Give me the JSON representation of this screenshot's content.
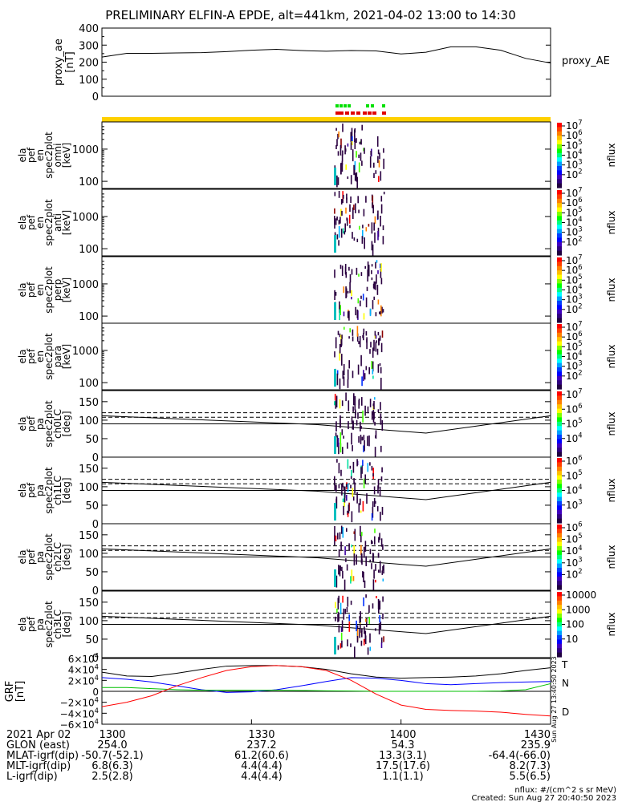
{
  "title": "PRELIMINARY ELFIN-A EPDE, alt=441km, 2021-04-02 13:00 to 14:30",
  "colors": {
    "yellow_bar": "#ffd000",
    "marker_green": "#00e000",
    "marker_red": "#e00000",
    "grf_T": "#000000",
    "grf_N": "#0000ff",
    "grf_E": "#00c000",
    "grf_D": "#ff0000"
  },
  "chart_data": [
    {
      "type": "line",
      "panel": "proxy_ae",
      "ylabel_lines": [
        "proxy_ae",
        "[nT]"
      ],
      "ylim": [
        0,
        400
      ],
      "yticks": [
        "400",
        "300",
        "200",
        "100",
        "0"
      ],
      "series": [
        {
          "name": "proxy_AE",
          "x": [
            0,
            5,
            10,
            15,
            20,
            25,
            30,
            35,
            40,
            45,
            50,
            55,
            60,
            65,
            70,
            75,
            80,
            85,
            90
          ],
          "values": [
            230,
            252,
            252,
            254,
            256,
            262,
            270,
            275,
            268,
            264,
            268,
            266,
            248,
            258,
            290,
            290,
            270,
            222,
            195
          ]
        }
      ]
    },
    {
      "type": "heatmap",
      "panel": "ela_pef_en_spec2plot_omni",
      "ylabel_lines": [
        "ela",
        "pef",
        "en",
        "spec2plot",
        "omni",
        "[keV]"
      ],
      "scale": "log",
      "ylim": [
        60,
        7000
      ],
      "yticks": [
        "1000",
        "100"
      ],
      "colorbar": {
        "label": "nflux",
        "ticks": [
          "10^7",
          "10^6",
          "10^5",
          "10^4",
          "10^3",
          "10^2"
        ]
      }
    },
    {
      "type": "heatmap",
      "panel": "ela_pef_en_spec2plot_anti",
      "ylabel_lines": [
        "ela",
        "pef",
        "en",
        "spec2plot",
        "anti",
        "[keV]"
      ],
      "scale": "log",
      "ylim": [
        60,
        7000
      ],
      "yticks": [
        "1000",
        "100"
      ],
      "colorbar": {
        "label": "nflux",
        "ticks": [
          "10^7",
          "10^6",
          "10^5",
          "10^4",
          "10^3",
          "10^2"
        ]
      }
    },
    {
      "type": "heatmap",
      "panel": "ela_pef_en_spec2plot_perp",
      "ylabel_lines": [
        "ela",
        "pef",
        "en",
        "spec2plot",
        "perp",
        "[keV]"
      ],
      "scale": "log",
      "ylim": [
        60,
        7000
      ],
      "yticks": [
        "1000",
        "100"
      ],
      "colorbar": {
        "label": "nflux",
        "ticks": [
          "10^7",
          "10^6",
          "10^5",
          "10^4",
          "10^3",
          "10^2"
        ]
      }
    },
    {
      "type": "heatmap",
      "panel": "ela_pef_en_spec2plot_para",
      "ylabel_lines": [
        "ela",
        "pef",
        "en",
        "spec2plot",
        "para",
        "[keV]"
      ],
      "scale": "log",
      "ylim": [
        60,
        7000
      ],
      "yticks": [
        "1000",
        "100"
      ],
      "colorbar": {
        "label": "nflux",
        "ticks": [
          "10^7",
          "10^6",
          "10^5",
          "10^4",
          "10^3",
          "10^2"
        ]
      }
    },
    {
      "type": "heatmap",
      "panel": "ela_pef_pa_spec2plot_ch0LC",
      "ylabel_lines": [
        "ela",
        "pef",
        "pa",
        "spec2plot",
        "ch0LC",
        "[deg]"
      ],
      "ylim": [
        0,
        180
      ],
      "yticks": [
        "150",
        "100",
        "50",
        "0"
      ],
      "colorbar": {
        "label": "nflux",
        "ticks": [
          "10^7",
          "10^6",
          "10^5",
          "10^4"
        ]
      }
    },
    {
      "type": "heatmap",
      "panel": "ela_pef_pa_spec2plot_ch1LC",
      "ylabel_lines": [
        "ela",
        "pef",
        "pa",
        "spec2plot",
        "ch1LC",
        "[deg]"
      ],
      "ylim": [
        0,
        180
      ],
      "yticks": [
        "150",
        "100",
        "50",
        "0"
      ],
      "colorbar": {
        "label": "nflux",
        "ticks": [
          "10^6",
          "10^5",
          "10^4",
          "10^3"
        ]
      }
    },
    {
      "type": "heatmap",
      "panel": "ela_pef_pa_spec2plot_ch2LC",
      "ylabel_lines": [
        "ela",
        "pef",
        "pa",
        "spec2plot",
        "ch2LC",
        "[deg]"
      ],
      "ylim": [
        0,
        180
      ],
      "yticks": [
        "150",
        "100",
        "50",
        "0"
      ],
      "colorbar": {
        "label": "nflux",
        "ticks": [
          "10^6",
          "10^5",
          "10^4",
          "10^3",
          "10^2"
        ]
      }
    },
    {
      "type": "heatmap",
      "panel": "ela_pef_pa_spec2plot_ch3LC",
      "ylabel_lines": [
        "ela",
        "pef",
        "pa",
        "spec2plot",
        "ch3LC",
        "[deg]"
      ],
      "ylim": [
        0,
        180
      ],
      "yticks": [
        "150",
        "100",
        "50",
        "0"
      ],
      "colorbar": {
        "label": "nflux",
        "ticks": [
          "10000",
          "1000",
          "100",
          "10"
        ]
      }
    },
    {
      "type": "line",
      "panel": "GRF",
      "ylabel_lines": [
        "GRF",
        "[nT]"
      ],
      "ylim": [
        -60000,
        60000
      ],
      "yticks": [
        "6×10^4",
        "4×10^4",
        "2×10^4",
        "0",
        "−2×10^4",
        "−4×10^4",
        "−6×10^4"
      ],
      "x": [
        0,
        5,
        10,
        15,
        20,
        25,
        30,
        35,
        40,
        45,
        50,
        55,
        60,
        65,
        70,
        75,
        80,
        85,
        90
      ],
      "series": [
        {
          "name": "T",
          "values": [
            35000,
            28000,
            27000,
            33000,
            40000,
            46000,
            47000,
            47000,
            45000,
            40000,
            32000,
            26000,
            24000,
            25000,
            26000,
            28000,
            32000,
            38000,
            43000
          ]
        },
        {
          "name": "N",
          "values": [
            25000,
            22000,
            17000,
            10000,
            3000,
            -2000,
            -1000,
            3000,
            10000,
            18000,
            25000,
            24000,
            20000,
            14000,
            12000,
            14000,
            16000,
            17000,
            18000
          ]
        },
        {
          "name": "E",
          "values": [
            7000,
            7000,
            5000,
            3000,
            2000,
            2000,
            2000,
            2000,
            1500,
            1000,
            500,
            0,
            0,
            0,
            0,
            0,
            500,
            3000,
            14000
          ]
        },
        {
          "name": "D",
          "values": [
            -28000,
            -20000,
            -8000,
            10000,
            25000,
            38000,
            45000,
            47000,
            45000,
            38000,
            20000,
            -5000,
            -25000,
            -33000,
            -35000,
            -36000,
            -38000,
            -42000,
            -45000
          ]
        }
      ]
    }
  ],
  "time_axis": {
    "ticks": [
      "1300",
      "1330",
      "1400",
      "1430"
    ],
    "rows": [
      {
        "label": "2021 Apr 02",
        "values": [
          "1300",
          "1330",
          "1400",
          "1430"
        ]
      },
      {
        "label": "GLON (east)",
        "values": [
          "254.0",
          "237.2",
          "54.3",
          "235.9"
        ]
      },
      {
        "label": "MLAT-igrf(dip)",
        "values": [
          "-50.7(-52.1)",
          "61.2(60.6)",
          "13.3(3.1)",
          "-64.4(-66.0)"
        ]
      },
      {
        "label": "MLT-igrf(dip)",
        "values": [
          "6.8(6.3)",
          "4.4(4.4)",
          "17.5(17.6)",
          "8.2(7.3)"
        ]
      },
      {
        "label": "L-igrf(dip)",
        "values": [
          "2.5(2.8)",
          "4.4(4.4)",
          "1.1(1.1)",
          "5.5(6.5)"
        ]
      }
    ]
  },
  "legend": {
    "proxy": "proxy_AE",
    "grf": [
      "T",
      "N",
      "E",
      "D"
    ]
  },
  "footer": {
    "units": "nflux: #/(cm^2 s sr MeV)",
    "created": "Created: Sun Aug 27 20:40:50 2023",
    "side_stamp": "Sun Aug 27 13:40:50 2023"
  }
}
